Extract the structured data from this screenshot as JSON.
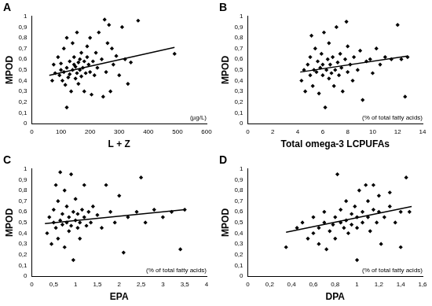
{
  "chart_data": [
    {
      "type": "scatter",
      "title": "A",
      "x_label": "L + Z",
      "x_unit": "(µg/L)",
      "y_label": "MPOD",
      "color": "#000000",
      "marker": "diamond",
      "grid": false,
      "xlim": [
        0,
        600
      ],
      "xticks": [
        0,
        100,
        200,
        300,
        400,
        500,
        600
      ],
      "ylim": [
        0,
        1
      ],
      "yticks": [
        0,
        {
          "value": 0.1,
          "label": "0,1"
        },
        {
          "value": 0.2,
          "label": "0,2"
        },
        {
          "value": 0.3,
          "label": "0,3"
        },
        {
          "value": 0.4,
          "label": "0,4"
        },
        {
          "value": 0.5,
          "label": "0,5"
        },
        {
          "value": 0.6,
          "label": "0,6"
        },
        {
          "value": 0.7,
          "label": "0,7"
        },
        {
          "value": 0.8,
          "label": "0,8"
        },
        {
          "value": 0.9,
          "label": "0,9"
        },
        1
      ],
      "x": [
        70,
        75,
        80,
        90,
        95,
        100,
        100,
        105,
        110,
        110,
        115,
        120,
        120,
        120,
        125,
        130,
        130,
        135,
        140,
        140,
        145,
        145,
        150,
        150,
        155,
        155,
        160,
        160,
        165,
        165,
        170,
        170,
        175,
        180,
        180,
        185,
        190,
        190,
        195,
        200,
        200,
        205,
        210,
        215,
        220,
        225,
        230,
        240,
        245,
        250,
        255,
        260,
        265,
        270,
        275,
        280,
        290,
        300,
        310,
        320,
        330,
        340,
        365,
        490
      ],
      "values": [
        0.4,
        0.55,
        0.47,
        0.62,
        0.45,
        0.5,
        0.56,
        0.4,
        0.7,
        0.48,
        0.36,
        0.8,
        0.52,
        0.15,
        0.43,
        0.58,
        0.46,
        0.3,
        0.5,
        0.75,
        0.55,
        0.62,
        0.42,
        0.53,
        0.85,
        0.47,
        0.57,
        0.37,
        0.6,
        0.5,
        0.44,
        0.66,
        0.52,
        0.58,
        0.3,
        0.47,
        0.62,
        0.72,
        0.55,
        0.48,
        0.8,
        0.27,
        0.58,
        0.45,
        0.66,
        0.52,
        0.85,
        0.6,
        0.25,
        0.97,
        0.48,
        0.75,
        0.92,
        0.3,
        0.7,
        0.55,
        0.63,
        0.45,
        0.9,
        0.6,
        0.37,
        0.57,
        0.96,
        0.65
      ],
      "trend": {
        "x": [
          60,
          490
        ],
        "values": [
          0.45,
          0.71
        ]
      }
    },
    {
      "type": "scatter",
      "title": "B",
      "x_label": "Total omega-3 LCPUFAs",
      "x_unit": "(% of total fatty acids)",
      "y_label": "MPOD",
      "color": "#000000",
      "marker": "diamond",
      "grid": false,
      "xlim": [
        0,
        14
      ],
      "xticks": [
        0,
        2,
        4,
        6,
        8,
        10,
        12,
        14
      ],
      "ylim": [
        0,
        1
      ],
      "yticks": [
        0,
        {
          "value": 0.1,
          "label": "0,1"
        },
        {
          "value": 0.2,
          "label": "0,2"
        },
        {
          "value": 0.3,
          "label": "0,3"
        },
        {
          "value": 0.4,
          "label": "0,4"
        },
        {
          "value": 0.5,
          "label": "0,5"
        },
        {
          "value": 0.6,
          "label": "0,6"
        },
        {
          "value": 0.7,
          "label": "0,7"
        },
        {
          "value": 0.8,
          "label": "0,8"
        },
        {
          "value": 0.9,
          "label": "0,9"
        },
        1
      ],
      "x": [
        4.3,
        4.5,
        4.6,
        4.8,
        5,
        5,
        5.2,
        5.3,
        5.4,
        5.5,
        5.6,
        5.7,
        5.8,
        5.9,
        6,
        6,
        6.1,
        6.2,
        6.3,
        6.4,
        6.5,
        6.5,
        6.6,
        6.7,
        6.8,
        6.9,
        7,
        7.1,
        7.2,
        7.3,
        7.4,
        7.5,
        7.6,
        7.8,
        8,
        8,
        8.2,
        8.4,
        8.5,
        8.8,
        9,
        9.2,
        9.5,
        9.8,
        10,
        10.3,
        10.6,
        11,
        11.5,
        12,
        12.3,
        12.6,
        12.8,
        7.9,
        5.1
      ],
      "values": [
        0.4,
        0.5,
        0.3,
        0.55,
        0.45,
        0.62,
        0.35,
        0.5,
        0.7,
        0.48,
        0.58,
        0.28,
        0.52,
        0.65,
        0.45,
        0.55,
        0.85,
        0.15,
        0.5,
        0.6,
        0.42,
        0.75,
        0.55,
        0.47,
        0.62,
        0.35,
        0.5,
        0.9,
        0.57,
        0.45,
        0.65,
        0.52,
        0.3,
        0.6,
        0.48,
        0.72,
        0.55,
        0.4,
        0.62,
        0.5,
        0.68,
        0.22,
        0.58,
        0.6,
        0.47,
        0.7,
        0.55,
        0.62,
        0.6,
        0.92,
        0.6,
        0.25,
        0.62,
        0.95,
        0.82
      ],
      "trend": {
        "x": [
          4.2,
          12.8
        ],
        "values": [
          0.48,
          0.63
        ]
      }
    },
    {
      "type": "scatter",
      "title": "C",
      "x_label": "EPA",
      "x_unit": "(% of total fatty acids)",
      "y_label": "MPOD",
      "color": "#000000",
      "marker": "diamond",
      "grid": false,
      "xlim": [
        0,
        4
      ],
      "xticks": [
        0,
        {
          "value": 0.5,
          "label": "0,5"
        },
        1,
        {
          "value": 1.5,
          "label": "1,5"
        },
        2,
        {
          "value": 2.5,
          "label": "2,5"
        },
        3,
        {
          "value": 3.5,
          "label": "3,5"
        },
        4
      ],
      "ylim": [
        0,
        1
      ],
      "yticks": [
        0,
        {
          "value": 0.1,
          "label": "0,1"
        },
        {
          "value": 0.2,
          "label": "0,2"
        },
        {
          "value": 0.3,
          "label": "0,3"
        },
        {
          "value": 0.4,
          "label": "0,4"
        },
        {
          "value": 0.5,
          "label": "0,5"
        },
        {
          "value": 0.6,
          "label": "0,6"
        },
        {
          "value": 0.7,
          "label": "0,7"
        },
        {
          "value": 0.8,
          "label": "0,8"
        },
        {
          "value": 0.9,
          "label": "0,9"
        },
        1
      ],
      "x": [
        0.35,
        0.4,
        0.45,
        0.5,
        0.5,
        0.55,
        0.6,
        0.6,
        0.65,
        0.7,
        0.7,
        0.75,
        0.75,
        0.8,
        0.8,
        0.85,
        0.85,
        0.9,
        0.9,
        0.95,
        0.95,
        1,
        1,
        1.05,
        1.05,
        1.1,
        1.1,
        1.15,
        1.2,
        1.2,
        1.25,
        1.3,
        1.35,
        1.4,
        1.5,
        1.6,
        1.7,
        1.8,
        1.9,
        2,
        2.1,
        2.2,
        2.4,
        2.5,
        2.6,
        2.8,
        3,
        3.2,
        3.4,
        3.5,
        0.65,
        0.55
      ],
      "values": [
        0.4,
        0.55,
        0.3,
        0.5,
        0.62,
        0.45,
        0.35,
        0.7,
        0.52,
        0.48,
        0.58,
        0.8,
        0.27,
        0.5,
        0.65,
        0.42,
        0.55,
        0.95,
        0.47,
        0.6,
        0.15,
        0.52,
        0.72,
        0.45,
        0.58,
        0.5,
        0.35,
        0.62,
        0.55,
        0.85,
        0.47,
        0.6,
        0.5,
        0.65,
        0.57,
        0.45,
        0.85,
        0.6,
        0.5,
        0.75,
        0.22,
        0.55,
        0.6,
        0.92,
        0.5,
        0.62,
        0.55,
        0.6,
        0.25,
        0.62,
        0.97,
        0.85
      ],
      "trend": {
        "x": [
          0.3,
          3.5
        ],
        "values": [
          0.49,
          0.62
        ]
      }
    },
    {
      "type": "scatter",
      "title": "D",
      "x_label": "DPA",
      "x_unit": "(% of total fatty acids)",
      "y_label": "MPOD",
      "color": "#000000",
      "marker": "diamond",
      "grid": false,
      "xlim": [
        0,
        1.6
      ],
      "xticks": [
        0,
        {
          "value": 0.2,
          "label": "0,2"
        },
        {
          "value": 0.4,
          "label": "0,4"
        },
        {
          "value": 0.6,
          "label": "0,6"
        },
        {
          "value": 0.8,
          "label": "0,8"
        },
        1,
        {
          "value": 1.2,
          "label": "1,2"
        },
        {
          "value": 1.4,
          "label": "1,4"
        },
        {
          "value": 1.6,
          "label": "1,6"
        }
      ],
      "ylim": [
        0,
        1
      ],
      "yticks": [
        0,
        {
          "value": 0.1,
          "label": "0,1"
        },
        {
          "value": 0.2,
          "label": "0,2"
        },
        {
          "value": 0.3,
          "label": "0,3"
        },
        {
          "value": 0.4,
          "label": "0,4"
        },
        {
          "value": 0.5,
          "label": "0,5"
        },
        {
          "value": 0.6,
          "label": "0,6"
        },
        {
          "value": 0.7,
          "label": "0,7"
        },
        {
          "value": 0.8,
          "label": "0,8"
        },
        {
          "value": 0.9,
          "label": "0,9"
        },
        1
      ],
      "x": [
        0.35,
        0.45,
        0.5,
        0.55,
        0.6,
        0.6,
        0.65,
        0.65,
        0.7,
        0.7,
        0.72,
        0.75,
        0.78,
        0.8,
        0.8,
        0.82,
        0.85,
        0.85,
        0.88,
        0.9,
        0.9,
        0.92,
        0.95,
        0.95,
        0.98,
        1,
        1,
        1,
        1.02,
        1.05,
        1.05,
        1.08,
        1.1,
        1.1,
        1.12,
        1.15,
        1.15,
        1.18,
        1.2,
        1.2,
        1.22,
        1.25,
        1.3,
        1.35,
        1.4,
        1.45,
        1.48,
        1.4,
        1.3
      ],
      "values": [
        0.27,
        0.45,
        0.5,
        0.35,
        0.4,
        0.55,
        0.3,
        0.45,
        0.5,
        0.6,
        0.25,
        0.42,
        0.48,
        0.55,
        0.35,
        0.95,
        0.5,
        0.62,
        0.45,
        0.52,
        0.7,
        0.4,
        0.58,
        0.48,
        0.65,
        0.55,
        0.15,
        0.45,
        0.8,
        0.6,
        0.5,
        0.85,
        0.55,
        0.7,
        0.42,
        0.62,
        0.85,
        0.5,
        0.6,
        0.75,
        0.3,
        0.55,
        0.65,
        0.5,
        0.6,
        0.92,
        0.6,
        0.27,
        0.78
      ],
      "trend": {
        "x": [
          0.35,
          1.5
        ],
        "values": [
          0.41,
          0.65
        ]
      }
    }
  ]
}
